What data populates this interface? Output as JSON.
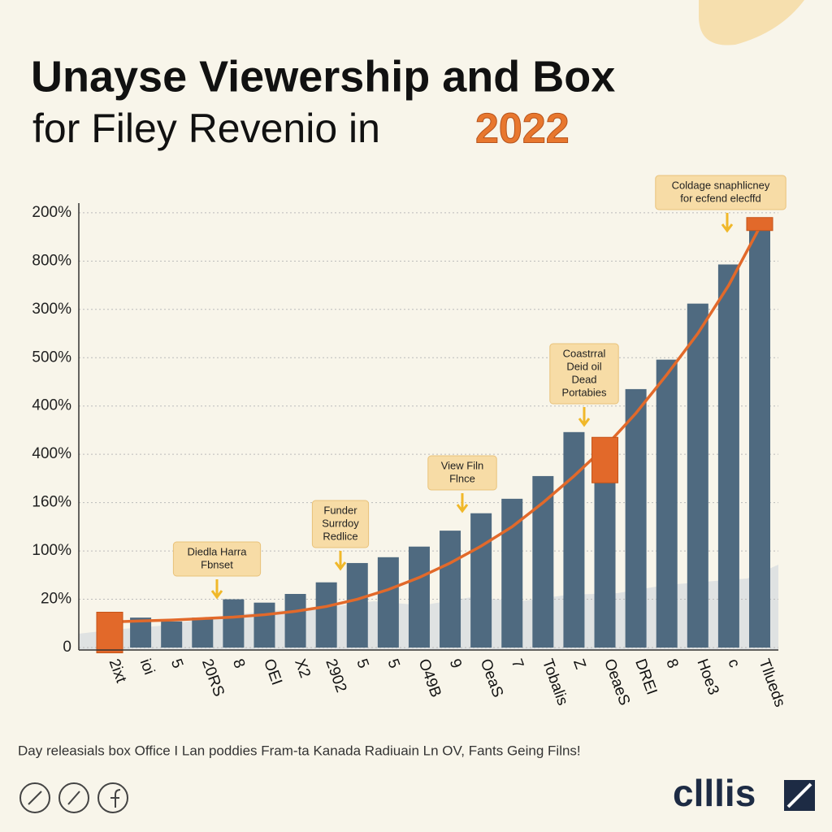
{
  "chart_data": {
    "type": "bar",
    "title_line1": "Unayse Viewership and Box",
    "title_line2": "for Filey Revenio in",
    "title_year": "2022",
    "categories": [
      "2ixt",
      "ioi",
      "5",
      "20RS",
      "8",
      "OEI",
      "X2",
      "2902",
      "5",
      "5",
      "O49B",
      "9",
      "OeaS",
      "7",
      "Tobalis",
      "Z",
      "OeaeS",
      "DREI",
      "8",
      "Hoe3",
      "c",
      "Tllueds"
    ],
    "series": [
      {
        "name": "Viewership",
        "type": "bar",
        "color": "#4f6a80",
        "values": [
          0.6,
          0.62,
          0.54,
          0.62,
          1.0,
          0.93,
          1.11,
          1.35,
          1.75,
          1.87,
          2.09,
          2.42,
          2.78,
          3.08,
          3.55,
          4.46,
          4.0,
          5.35,
          5.96,
          7.12,
          7.93,
          8.7
        ]
      },
      {
        "name": "Box Office",
        "type": "line",
        "color": "#e2692a",
        "values": [
          0.53,
          0.55,
          0.57,
          0.6,
          0.63,
          0.68,
          0.75,
          0.85,
          1.0,
          1.2,
          1.45,
          1.75,
          2.1,
          2.5,
          3.0,
          3.55,
          4.15,
          4.85,
          5.65,
          6.5,
          7.5,
          8.7
        ]
      }
    ],
    "highlight_indices": [
      0,
      16,
      21
    ],
    "ylim": [
      0,
      9.2
    ],
    "yticks": [
      0,
      {
        "value": 1,
        "label": "20%"
      },
      {
        "value": 2,
        "label": "100%"
      },
      {
        "value": 3,
        "label": "160%"
      },
      {
        "value": 4,
        "label": "400%"
      },
      {
        "value": 5,
        "label": "400%"
      },
      {
        "value": 6,
        "label": "500%"
      },
      {
        "value": 7,
        "label": "300%"
      },
      {
        "value": 8,
        "label": "800%"
      },
      {
        "value": 9,
        "label": "200%"
      }
    ],
    "grid": true,
    "annotations": [
      {
        "lines": [
          "Diedla Harra",
          "Fbnset"
        ]
      },
      {
        "lines": [
          "Funder",
          "Surrdoy",
          "Redlice"
        ]
      },
      {
        "lines": [
          "View Filn",
          "Flnce"
        ]
      },
      {
        "lines": [
          "Coastrral",
          "Deid oil",
          "Dead",
          "Portabies"
        ]
      },
      {
        "lines": [
          "Coldage snaphlicney",
          "for ecfend elecffd"
        ]
      }
    ],
    "footnote": "Day releasials box Office I Lan poddies Fram-ta Kanada Radiuain Ln OV, Fants Geing Filns!",
    "brand": "clllis"
  }
}
